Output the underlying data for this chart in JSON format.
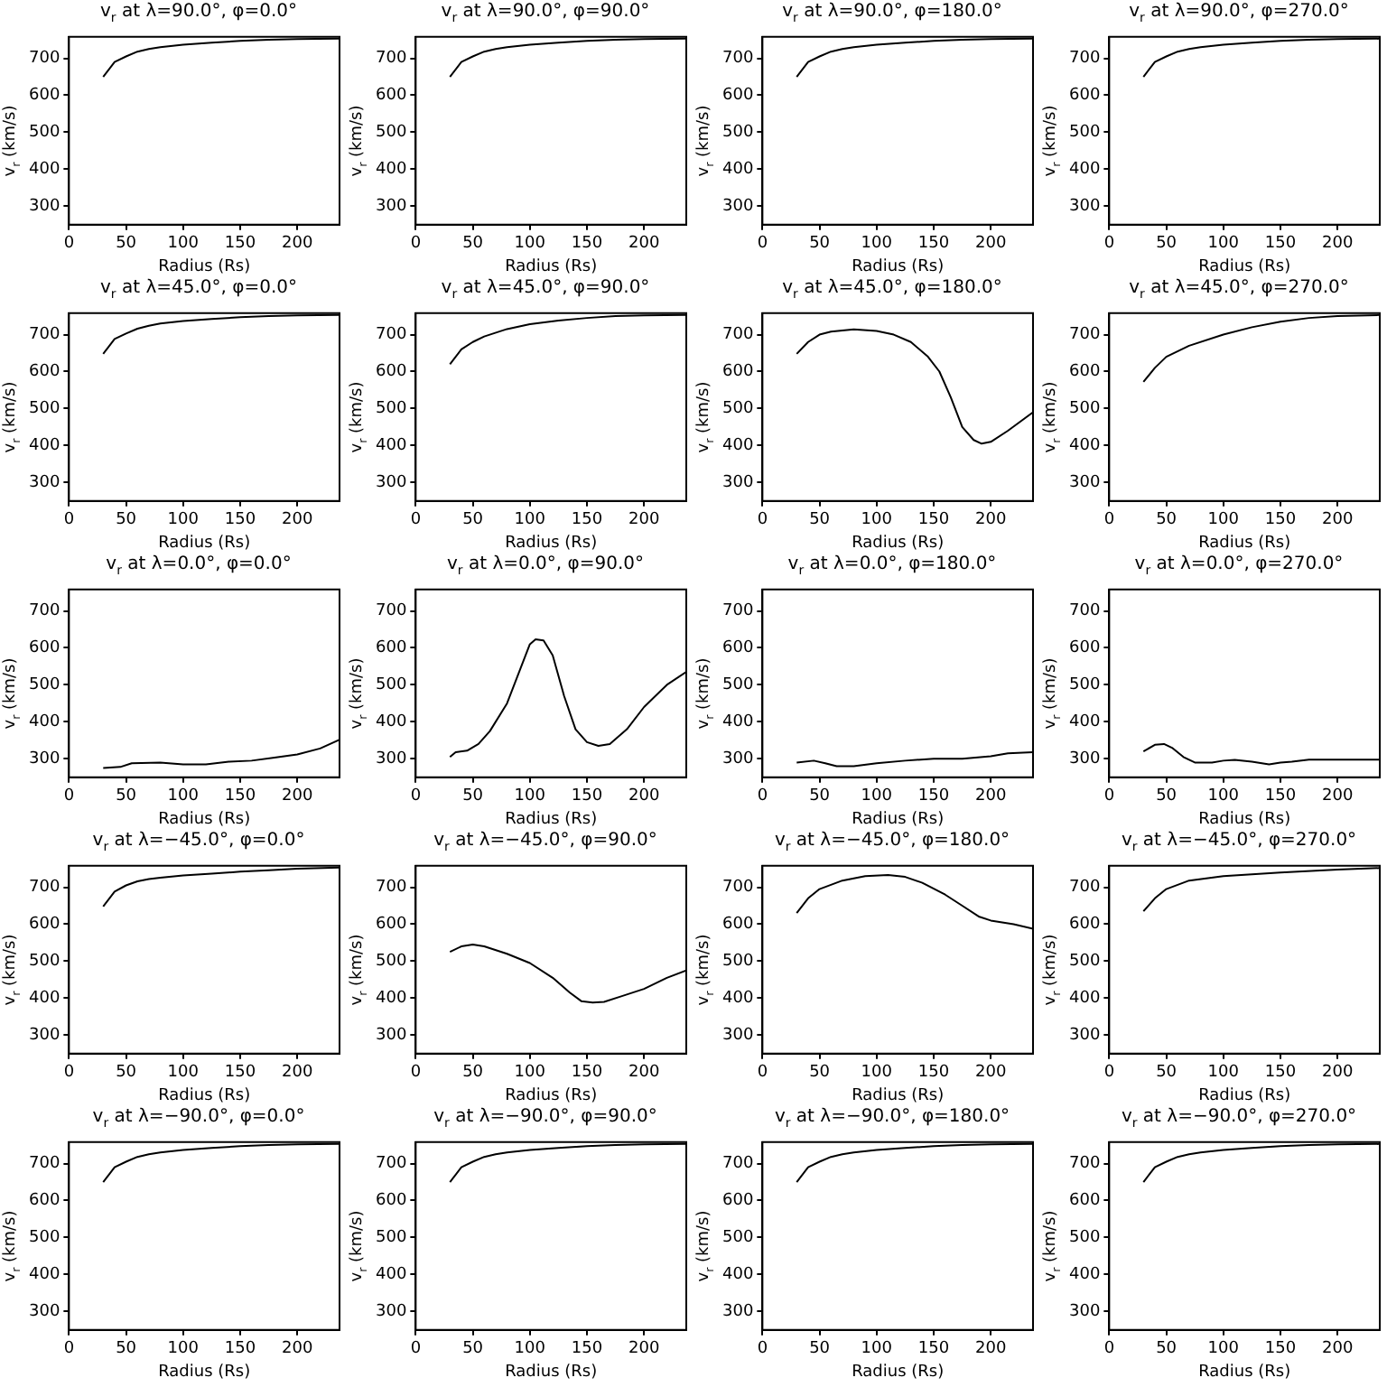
{
  "chart_data": [
    {
      "type": "line",
      "title": "v$_{r}$ at λ=90.0°, φ=0.0°",
      "xlabel": "Radius (Rs)",
      "ylabel": "v$_{r}$ (km/s)",
      "x": [
        30,
        40,
        50,
        60,
        70,
        80,
        100,
        125,
        150,
        175,
        200,
        237
      ],
      "values": [
        650,
        690,
        705,
        718,
        725,
        730,
        737,
        742,
        747,
        750,
        752,
        753
      ],
      "color": "#000000",
      "xlim": [
        0,
        237
      ],
      "ylim": [
        250,
        758
      ],
      "xticks": [
        0,
        50,
        100,
        150,
        200
      ],
      "yticks": [
        300,
        400,
        500,
        600,
        700
      ],
      "grid": false,
      "legend": false
    },
    {
      "type": "line",
      "title": "v$_{r}$ at λ=90.0°, φ=90.0°",
      "xlabel": "Radius (Rs)",
      "ylabel": "v$_{r}$ (km/s)",
      "x": [
        30,
        40,
        50,
        60,
        70,
        80,
        100,
        125,
        150,
        175,
        200,
        237
      ],
      "values": [
        650,
        690,
        705,
        718,
        725,
        730,
        737,
        742,
        747,
        750,
        752,
        753
      ],
      "color": "#000000",
      "xlim": [
        0,
        237
      ],
      "ylim": [
        250,
        758
      ],
      "xticks": [
        0,
        50,
        100,
        150,
        200
      ],
      "yticks": [
        300,
        400,
        500,
        600,
        700
      ],
      "grid": false,
      "legend": false
    },
    {
      "type": "line",
      "title": "v$_{r}$ at λ=90.0°, φ=180.0°",
      "xlabel": "Radius (Rs)",
      "ylabel": "v$_{r}$ (km/s)",
      "x": [
        30,
        40,
        50,
        60,
        70,
        80,
        100,
        125,
        150,
        175,
        200,
        237
      ],
      "values": [
        650,
        690,
        705,
        718,
        725,
        730,
        737,
        742,
        747,
        750,
        752,
        753
      ],
      "color": "#000000",
      "xlim": [
        0,
        237
      ],
      "ylim": [
        250,
        758
      ],
      "xticks": [
        0,
        50,
        100,
        150,
        200
      ],
      "yticks": [
        300,
        400,
        500,
        600,
        700
      ],
      "grid": false,
      "legend": false
    },
    {
      "type": "line",
      "title": "v$_{r}$ at λ=90.0°, φ=270.0°",
      "xlabel": "Radius (Rs)",
      "ylabel": "v$_{r}$ (km/s)",
      "x": [
        30,
        40,
        50,
        60,
        70,
        80,
        100,
        125,
        150,
        175,
        200,
        237
      ],
      "values": [
        650,
        690,
        705,
        718,
        725,
        730,
        737,
        742,
        747,
        750,
        752,
        753
      ],
      "color": "#000000",
      "xlim": [
        0,
        237
      ],
      "ylim": [
        250,
        758
      ],
      "xticks": [
        0,
        50,
        100,
        150,
        200
      ],
      "yticks": [
        300,
        400,
        500,
        600,
        700
      ],
      "grid": false,
      "legend": false
    },
    {
      "type": "line",
      "title": "v$_{r}$ at λ=45.0°, φ=0.0°",
      "xlabel": "Radius (Rs)",
      "ylabel": "v$_{r}$ (km/s)",
      "x": [
        30,
        40,
        50,
        60,
        70,
        80,
        100,
        125,
        150,
        175,
        200,
        237
      ],
      "values": [
        648,
        688,
        703,
        716,
        724,
        730,
        737,
        742,
        747,
        750,
        752,
        753
      ],
      "color": "#000000",
      "xlim": [
        0,
        237
      ],
      "ylim": [
        250,
        758
      ],
      "xticks": [
        0,
        50,
        100,
        150,
        200
      ],
      "yticks": [
        300,
        400,
        500,
        600,
        700
      ],
      "grid": false,
      "legend": false
    },
    {
      "type": "line",
      "title": "v$_{r}$ at λ=45.0°, φ=90.0°",
      "xlabel": "Radius (Rs)",
      "ylabel": "v$_{r}$ (km/s)",
      "x": [
        30,
        40,
        50,
        60,
        80,
        100,
        125,
        150,
        175,
        200,
        237
      ],
      "values": [
        620,
        660,
        680,
        695,
        715,
        728,
        738,
        745,
        750,
        752,
        753
      ],
      "color": "#000000",
      "xlim": [
        0,
        237
      ],
      "ylim": [
        250,
        758
      ],
      "xticks": [
        0,
        50,
        100,
        150,
        200
      ],
      "yticks": [
        300,
        400,
        500,
        600,
        700
      ],
      "grid": false,
      "legend": false
    },
    {
      "type": "line",
      "title": "v$_{r}$ at λ=45.0°, φ=180.0°",
      "xlabel": "Radius (Rs)",
      "ylabel": "v$_{r}$ (km/s)",
      "x": [
        30,
        40,
        50,
        60,
        80,
        100,
        115,
        130,
        145,
        155,
        165,
        175,
        185,
        192,
        200,
        215,
        237
      ],
      "values": [
        648,
        680,
        700,
        708,
        714,
        710,
        700,
        680,
        640,
        600,
        530,
        450,
        415,
        405,
        410,
        440,
        490
      ],
      "color": "#000000",
      "xlim": [
        0,
        237
      ],
      "ylim": [
        250,
        758
      ],
      "xticks": [
        0,
        50,
        100,
        150,
        200
      ],
      "yticks": [
        300,
        400,
        500,
        600,
        700
      ],
      "grid": false,
      "legend": false
    },
    {
      "type": "line",
      "title": "v$_{r}$ at λ=45.0°, φ=270.0°",
      "xlabel": "Radius (Rs)",
      "ylabel": "v$_{r}$ (km/s)",
      "x": [
        30,
        40,
        50,
        70,
        100,
        125,
        150,
        175,
        200,
        237
      ],
      "values": [
        572,
        610,
        640,
        670,
        700,
        720,
        735,
        745,
        750,
        753
      ],
      "color": "#000000",
      "xlim": [
        0,
        237
      ],
      "ylim": [
        250,
        758
      ],
      "xticks": [
        0,
        50,
        100,
        150,
        200
      ],
      "yticks": [
        300,
        400,
        500,
        600,
        700
      ],
      "grid": false,
      "legend": false
    },
    {
      "type": "line",
      "title": "v$_{r}$ at λ=0.0°, φ=0.0°",
      "xlabel": "Radius (Rs)",
      "ylabel": "v$_{r}$ (km/s)",
      "x": [
        30,
        45,
        55,
        80,
        100,
        120,
        140,
        160,
        180,
        200,
        220,
        237
      ],
      "values": [
        275,
        278,
        288,
        290,
        285,
        285,
        292,
        295,
        303,
        312,
        328,
        352
      ],
      "color": "#000000",
      "xlim": [
        0,
        237
      ],
      "ylim": [
        250,
        758
      ],
      "xticks": [
        0,
        50,
        100,
        150,
        200
      ],
      "yticks": [
        300,
        400,
        500,
        600,
        700
      ],
      "grid": false,
      "legend": false
    },
    {
      "type": "line",
      "title": "v$_{r}$ at λ=0.0°, φ=90.0°",
      "xlabel": "Radius (Rs)",
      "ylabel": "v$_{r}$ (km/s)",
      "x": [
        30,
        35,
        45,
        55,
        65,
        80,
        90,
        100,
        105,
        112,
        120,
        130,
        140,
        150,
        160,
        170,
        185,
        200,
        220,
        237
      ],
      "values": [
        305,
        318,
        322,
        340,
        375,
        450,
        530,
        610,
        623,
        620,
        580,
        470,
        380,
        345,
        335,
        340,
        380,
        440,
        500,
        535
      ],
      "color": "#000000",
      "xlim": [
        0,
        237
      ],
      "ylim": [
        250,
        758
      ],
      "xticks": [
        0,
        50,
        100,
        150,
        200
      ],
      "yticks": [
        300,
        400,
        500,
        600,
        700
      ],
      "grid": false,
      "legend": false
    },
    {
      "type": "line",
      "title": "v$_{r}$ at λ=0.0°, φ=180.0°",
      "xlabel": "Radius (Rs)",
      "ylabel": "v$_{r}$ (km/s)",
      "x": [
        30,
        45,
        55,
        65,
        80,
        100,
        125,
        150,
        175,
        200,
        215,
        237
      ],
      "values": [
        290,
        295,
        288,
        280,
        280,
        288,
        295,
        300,
        300,
        307,
        315,
        318
      ],
      "color": "#000000",
      "xlim": [
        0,
        237
      ],
      "ylim": [
        250,
        758
      ],
      "xticks": [
        0,
        50,
        100,
        150,
        200
      ],
      "yticks": [
        300,
        400,
        500,
        600,
        700
      ],
      "grid": false,
      "legend": false
    },
    {
      "type": "line",
      "title": "v$_{r}$ at λ=0.0°, φ=270.0°",
      "xlabel": "Radius (Rs)",
      "ylabel": "v$_{r}$ (km/s)",
      "x": [
        30,
        40,
        48,
        55,
        65,
        75,
        90,
        100,
        110,
        125,
        140,
        150,
        160,
        175,
        200,
        237
      ],
      "values": [
        320,
        338,
        340,
        330,
        305,
        290,
        290,
        295,
        297,
        292,
        285,
        290,
        292,
        298,
        298,
        298
      ],
      "color": "#000000",
      "xlim": [
        0,
        237
      ],
      "ylim": [
        250,
        758
      ],
      "xticks": [
        0,
        50,
        100,
        150,
        200
      ],
      "yticks": [
        300,
        400,
        500,
        600,
        700
      ],
      "grid": false,
      "legend": false
    },
    {
      "type": "line",
      "title": "v$_{r}$ at λ=−45.0°, φ=0.0°",
      "xlabel": "Radius (Rs)",
      "ylabel": "v$_{r}$ (km/s)",
      "x": [
        30,
        40,
        50,
        60,
        70,
        80,
        100,
        125,
        150,
        175,
        200,
        237
      ],
      "values": [
        648,
        688,
        705,
        716,
        722,
        726,
        732,
        737,
        742,
        746,
        750,
        753
      ],
      "color": "#000000",
      "xlim": [
        0,
        237
      ],
      "ylim": [
        250,
        758
      ],
      "xticks": [
        0,
        50,
        100,
        150,
        200
      ],
      "yticks": [
        300,
        400,
        500,
        600,
        700
      ],
      "grid": false,
      "legend": false
    },
    {
      "type": "line",
      "title": "v$_{r}$ at λ=−45.0°, φ=90.0°",
      "xlabel": "Radius (Rs)",
      "ylabel": "v$_{r}$ (km/s)",
      "x": [
        30,
        40,
        50,
        60,
        80,
        100,
        120,
        135,
        145,
        155,
        165,
        180,
        200,
        220,
        237
      ],
      "values": [
        525,
        540,
        545,
        540,
        520,
        495,
        455,
        415,
        392,
        388,
        390,
        405,
        425,
        455,
        475
      ],
      "color": "#000000",
      "xlim": [
        0,
        237
      ],
      "ylim": [
        250,
        758
      ],
      "xticks": [
        0,
        50,
        100,
        150,
        200
      ],
      "yticks": [
        300,
        400,
        500,
        600,
        700
      ],
      "grid": false,
      "legend": false
    },
    {
      "type": "line",
      "title": "v$_{r}$ at λ=−45.0°, φ=180.0°",
      "xlabel": "Radius (Rs)",
      "ylabel": "v$_{r}$ (km/s)",
      "x": [
        30,
        40,
        50,
        70,
        90,
        110,
        125,
        140,
        160,
        175,
        190,
        200,
        220,
        237
      ],
      "values": [
        630,
        670,
        695,
        718,
        730,
        733,
        728,
        712,
        680,
        650,
        620,
        610,
        600,
        588
      ],
      "color": "#000000",
      "xlim": [
        0,
        237
      ],
      "ylim": [
        250,
        758
      ],
      "xticks": [
        0,
        50,
        100,
        150,
        200
      ],
      "yticks": [
        300,
        400,
        500,
        600,
        700
      ],
      "grid": false,
      "legend": false
    },
    {
      "type": "line",
      "title": "v$_{r}$ at λ=−45.0°, φ=270.0°",
      "xlabel": "Radius (Rs)",
      "ylabel": "v$_{r}$ (km/s)",
      "x": [
        30,
        40,
        50,
        70,
        100,
        150,
        200,
        237
      ],
      "values": [
        635,
        670,
        695,
        718,
        730,
        740,
        748,
        752
      ],
      "color": "#000000",
      "xlim": [
        0,
        237
      ],
      "ylim": [
        250,
        758
      ],
      "xticks": [
        0,
        50,
        100,
        150,
        200
      ],
      "yticks": [
        300,
        400,
        500,
        600,
        700
      ],
      "grid": false,
      "legend": false
    },
    {
      "type": "line",
      "title": "v$_{r}$ at λ=−90.0°, φ=0.0°",
      "xlabel": "Radius (Rs)",
      "ylabel": "v$_{r}$ (km/s)",
      "x": [
        30,
        40,
        50,
        60,
        70,
        80,
        100,
        125,
        150,
        175,
        200,
        237
      ],
      "values": [
        650,
        690,
        705,
        718,
        725,
        730,
        737,
        742,
        747,
        750,
        752,
        753
      ],
      "color": "#000000",
      "xlim": [
        0,
        237
      ],
      "ylim": [
        250,
        758
      ],
      "xticks": [
        0,
        50,
        100,
        150,
        200
      ],
      "yticks": [
        300,
        400,
        500,
        600,
        700
      ],
      "grid": false,
      "legend": false
    },
    {
      "type": "line",
      "title": "v$_{r}$ at λ=−90.0°, φ=90.0°",
      "xlabel": "Radius (Rs)",
      "ylabel": "v$_{r}$ (km/s)",
      "x": [
        30,
        40,
        50,
        60,
        70,
        80,
        100,
        125,
        150,
        175,
        200,
        237
      ],
      "values": [
        650,
        690,
        705,
        718,
        725,
        730,
        737,
        742,
        747,
        750,
        752,
        753
      ],
      "color": "#000000",
      "xlim": [
        0,
        237
      ],
      "ylim": [
        250,
        758
      ],
      "xticks": [
        0,
        50,
        100,
        150,
        200
      ],
      "yticks": [
        300,
        400,
        500,
        600,
        700
      ],
      "grid": false,
      "legend": false
    },
    {
      "type": "line",
      "title": "v$_{r}$ at λ=−90.0°, φ=180.0°",
      "xlabel": "Radius (Rs)",
      "ylabel": "v$_{r}$ (km/s)",
      "x": [
        30,
        40,
        50,
        60,
        70,
        80,
        100,
        125,
        150,
        175,
        200,
        237
      ],
      "values": [
        650,
        690,
        705,
        718,
        725,
        730,
        737,
        742,
        747,
        750,
        752,
        753
      ],
      "color": "#000000",
      "xlim": [
        0,
        237
      ],
      "ylim": [
        250,
        758
      ],
      "xticks": [
        0,
        50,
        100,
        150,
        200
      ],
      "yticks": [
        300,
        400,
        500,
        600,
        700
      ],
      "grid": false,
      "legend": false
    },
    {
      "type": "line",
      "title": "v$_{r}$ at λ=−90.0°, φ=270.0°",
      "xlabel": "Radius (Rs)",
      "ylabel": "v$_{r}$ (km/s)",
      "x": [
        30,
        40,
        50,
        60,
        70,
        80,
        100,
        125,
        150,
        175,
        200,
        237
      ],
      "values": [
        650,
        690,
        705,
        718,
        725,
        730,
        737,
        742,
        747,
        750,
        752,
        753
      ],
      "color": "#000000",
      "xlim": [
        0,
        237
      ],
      "ylim": [
        250,
        758
      ],
      "xticks": [
        0,
        50,
        100,
        150,
        200
      ],
      "yticks": [
        300,
        400,
        500,
        600,
        700
      ],
      "grid": false,
      "legend": false
    }
  ]
}
